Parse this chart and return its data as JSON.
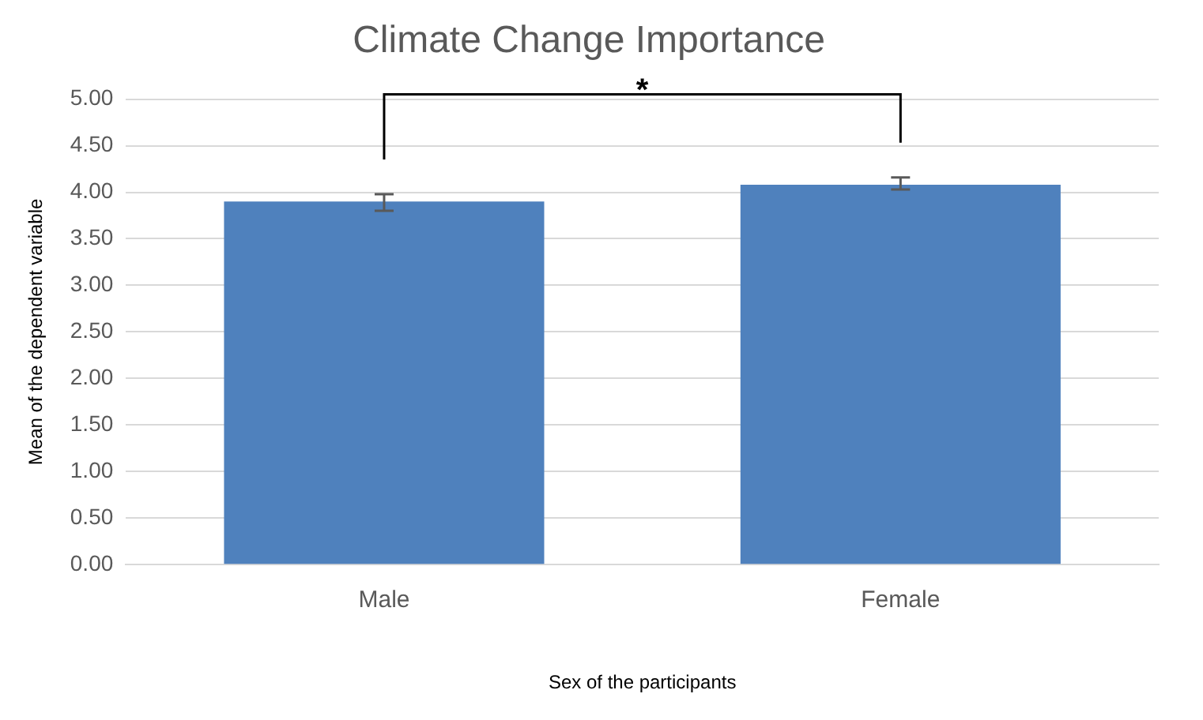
{
  "chart_data": {
    "type": "bar",
    "title": "Climate Change Importance",
    "xlabel": "Sex of the participants",
    "ylabel": "Mean of the dependent variable",
    "categories": [
      "Male",
      "Female"
    ],
    "values": [
      3.9,
      4.08
    ],
    "color": "#4f81bd",
    "errors": [
      [
        3.8,
        3.98
      ],
      [
        4.03,
        4.16
      ]
    ],
    "ylim": [
      0,
      5
    ],
    "yticks": [
      {
        "value": 0,
        "label": "0.00"
      },
      {
        "value": 0.5,
        "label": "0.50"
      },
      {
        "value": 1,
        "label": "1.00"
      },
      {
        "value": 1.5,
        "label": "1.50"
      },
      {
        "value": 2,
        "label": "2.00"
      },
      {
        "value": 2.5,
        "label": "2.50"
      },
      {
        "value": 3,
        "label": "3.00"
      },
      {
        "value": 3.5,
        "label": "3.50"
      },
      {
        "value": 4,
        "label": "4.00"
      },
      {
        "value": 4.5,
        "label": "4.50"
      },
      {
        "value": 5,
        "label": "5.00"
      }
    ],
    "grid": "y",
    "legend": false,
    "annotations": [
      "*"
    ]
  }
}
